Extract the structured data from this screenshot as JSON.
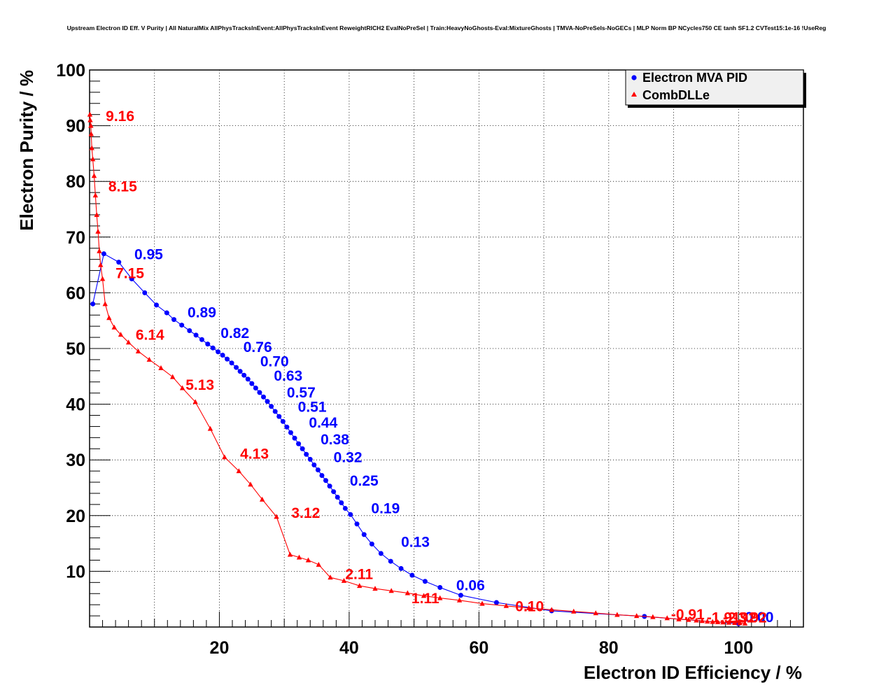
{
  "chart_data": {
    "type": "line",
    "title": "Upstream Electron ID Eff. V Purity | All NaturalMix AllPhysTracksInEvent:AllPhysTracksInEvent ReweightRICH2 EvalNoPreSel | Train:HeavyNoGhosts-Eval:MixtureGhosts | TMVA-NoPreSels-NoGECs | MLP Norm BP NCycles750 CE tanh SF1.2 CVTest15:1e-16 !UseReg",
    "xlabel": "Electron ID Efficiency / %",
    "ylabel": "Electron Purity / %",
    "xlim": [
      0,
      110
    ],
    "ylim": [
      0,
      100
    ],
    "x_ticks": [
      20,
      40,
      60,
      80,
      100
    ],
    "y_ticks": [
      10,
      20,
      30,
      40,
      50,
      60,
      70,
      80,
      90,
      100
    ],
    "grid": true,
    "legend_position": "top-right",
    "colors": {
      "series_1": "#0000ff",
      "series_2": "#ff0000",
      "grid": "#000000",
      "legend_bg": "#f0f0f0"
    },
    "series": [
      {
        "name": "Electron MVA PID",
        "marker": "circle",
        "color": "#0000ff",
        "x": [
          0.5,
          2.2,
          4.5,
          6.5,
          8.5,
          10.3,
          11.9,
          13.0,
          14.2,
          15.4,
          16.4,
          17.3,
          18.2,
          19.0,
          19.8,
          20.5,
          21.2,
          21.9,
          22.6,
          23.2,
          23.8,
          24.4,
          25.0,
          25.6,
          26.2,
          26.8,
          27.4,
          28.0,
          28.6,
          29.2,
          29.8,
          30.4,
          31.0,
          31.6,
          32.2,
          32.8,
          33.4,
          34.0,
          34.6,
          35.2,
          35.8,
          36.4,
          37.0,
          37.6,
          38.2,
          38.8,
          39.4,
          40.2,
          41.2,
          42.3,
          43.5,
          44.9,
          46.4,
          48.0,
          49.7,
          51.7,
          54.0,
          57.2,
          62.7,
          71.2,
          85.5,
          100.0
        ],
        "y": [
          58.0,
          67.0,
          65.5,
          62.5,
          60.0,
          57.8,
          56.4,
          55.2,
          54.2,
          53.2,
          52.4,
          51.6,
          50.8,
          50.1,
          49.4,
          48.8,
          48.1,
          47.4,
          46.6,
          45.9,
          45.2,
          44.5,
          43.7,
          42.9,
          42.1,
          41.3,
          40.5,
          39.6,
          38.7,
          37.8,
          36.9,
          35.9,
          34.9,
          33.9,
          32.9,
          32.0,
          31.0,
          30.1,
          29.1,
          28.2,
          27.2,
          26.3,
          25.3,
          24.3,
          23.3,
          22.3,
          21.3,
          20.2,
          18.5,
          16.6,
          14.9,
          13.2,
          11.8,
          10.5,
          9.3,
          8.2,
          7.1,
          5.7,
          4.4,
          2.9,
          1.9,
          0.6
        ],
        "labels": [
          {
            "text": "0.95",
            "x": 6.9,
            "y": 66.0
          },
          {
            "text": "0.89",
            "x": 15.1,
            "y": 55.6
          },
          {
            "text": "0.82",
            "x": 20.2,
            "y": 51.9
          },
          {
            "text": "0.76",
            "x": 23.7,
            "y": 49.4
          },
          {
            "text": "0.70",
            "x": 26.3,
            "y": 46.8
          },
          {
            "text": "0.63",
            "x": 28.4,
            "y": 44.2
          },
          {
            "text": "0.57",
            "x": 30.4,
            "y": 41.2
          },
          {
            "text": "0.51",
            "x": 32.1,
            "y": 38.6
          },
          {
            "text": "0.44",
            "x": 33.8,
            "y": 35.8
          },
          {
            "text": "0.38",
            "x": 35.6,
            "y": 32.8
          },
          {
            "text": "0.32",
            "x": 37.6,
            "y": 29.6
          },
          {
            "text": "0.25",
            "x": 40.1,
            "y": 25.4
          },
          {
            "text": "0.19",
            "x": 43.4,
            "y": 20.4
          },
          {
            "text": "0.13",
            "x": 48.0,
            "y": 14.4
          },
          {
            "text": "0.06",
            "x": 56.5,
            "y": 6.6
          },
          {
            "text": "0.00",
            "x": 101.0,
            "y": 0.9
          }
        ]
      },
      {
        "name": "CombDLLe",
        "marker": "triangle",
        "color": "#ff0000",
        "x": [
          0.05,
          0.1,
          0.2,
          0.25,
          0.35,
          0.5,
          0.7,
          0.9,
          1.1,
          1.3,
          1.5,
          1.7,
          2.0,
          2.4,
          3.0,
          3.8,
          4.8,
          6.0,
          7.5,
          9.2,
          11.0,
          12.8,
          14.3,
          16.3,
          18.6,
          20.8,
          23.0,
          24.8,
          26.6,
          28.8,
          30.9,
          32.3,
          33.7,
          35.3,
          37.1,
          39.2,
          41.6,
          44.0,
          46.5,
          49.0,
          51.5,
          54.0,
          57.0,
          60.5,
          64.2,
          67.7,
          71.2,
          74.6,
          78.0,
          81.3,
          84.3,
          86.8,
          89.0,
          90.8,
          92.3,
          93.5,
          94.4,
          95.2,
          96.0,
          96.8,
          97.6,
          98.5,
          99.4,
          100.2,
          101.0
        ],
        "y": [
          92.0,
          91.0,
          90.0,
          88.5,
          86.0,
          84.0,
          81.0,
          77.5,
          74.0,
          71.0,
          67.5,
          65.0,
          62.5,
          58.0,
          55.5,
          53.8,
          52.5,
          51.1,
          49.5,
          48.0,
          46.5,
          44.9,
          42.9,
          40.4,
          35.6,
          30.5,
          28.0,
          25.6,
          22.9,
          19.8,
          13.0,
          12.5,
          12.0,
          11.2,
          8.9,
          8.3,
          7.4,
          6.9,
          6.5,
          6.1,
          5.6,
          5.2,
          4.8,
          4.2,
          3.8,
          3.4,
          3.1,
          2.8,
          2.5,
          2.2,
          2.0,
          1.8,
          1.6,
          1.4,
          1.3,
          1.2,
          1.1,
          1.0,
          0.95,
          0.9,
          0.85,
          0.8,
          0.75,
          0.7,
          0.65
        ],
        "labels": [
          {
            "text": "9.16",
            "x": 2.5,
            "y": 90.8
          },
          {
            "text": "8.15",
            "x": 2.9,
            "y": 78.2
          },
          {
            "text": "7.15",
            "x": 4.0,
            "y": 62.6
          },
          {
            "text": "6.14",
            "x": 7.1,
            "y": 51.6
          },
          {
            "text": "5.13",
            "x": 14.8,
            "y": 42.6
          },
          {
            "text": "4.13",
            "x": 23.2,
            "y": 30.2
          },
          {
            "text": "3.12",
            "x": 31.1,
            "y": 19.6
          },
          {
            "text": "2.11",
            "x": 39.4,
            "y": 8.6
          },
          {
            "text": "1.11",
            "x": 49.6,
            "y": 4.3
          },
          {
            "text": "0.10",
            "x": 65.6,
            "y": 2.8
          },
          {
            "text": "-0.91",
            "x": 89.6,
            "y": 1.4
          },
          {
            "text": "-1.91",
            "x": 95.1,
            "y": 0.8
          },
          {
            "text": "-2.92",
            "x": 97.6,
            "y": 0.8
          },
          {
            "text": "-3.92",
            "x": 99.2,
            "y": 0.8
          }
        ]
      }
    ]
  }
}
